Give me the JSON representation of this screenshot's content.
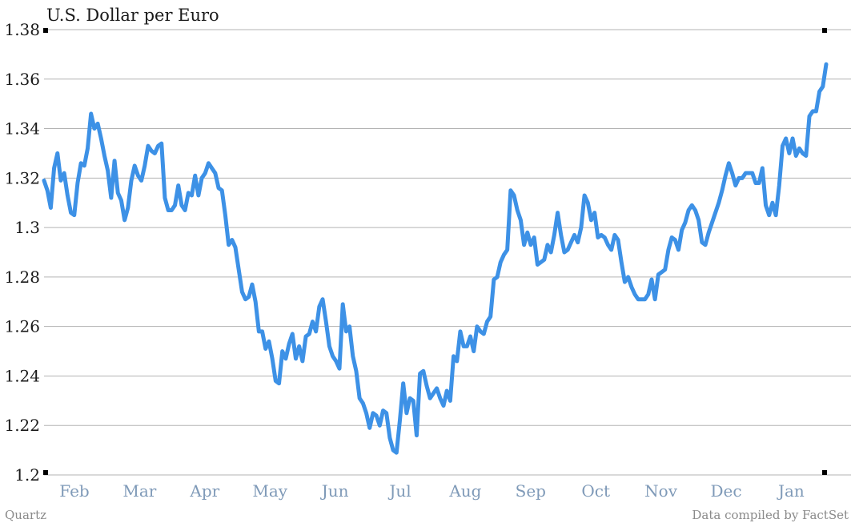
{
  "chart_data": {
    "type": "line",
    "title": "U.S. Dollar per Euro",
    "ylim": [
      1.2,
      1.38
    ],
    "yticks": [
      "1.2",
      "1.22",
      "1.24",
      "1.26",
      "1.28",
      "1.3",
      "1.32",
      "1.34",
      "1.36",
      "1.38"
    ],
    "xticks": [
      "Feb",
      "Mar",
      "Apr",
      "May",
      "Jun",
      "Jul",
      "Aug",
      "Sep",
      "Oct",
      "Nov",
      "Dec",
      "Jan"
    ],
    "grid": true,
    "series_color": "#3d91e6",
    "series": [
      {
        "values": [
          1.319,
          1.315,
          1.308,
          1.324,
          1.33,
          1.319,
          1.322,
          1.313,
          1.306,
          1.305,
          1.318,
          1.326,
          1.325,
          1.332,
          1.346,
          1.34,
          1.342,
          1.336,
          1.329,
          1.323,
          1.312,
          1.327,
          1.314,
          1.311,
          1.303,
          1.308,
          1.319,
          1.325,
          1.321,
          1.319,
          1.325,
          1.333,
          1.331,
          1.33,
          1.333,
          1.334,
          1.312,
          1.307,
          1.307,
          1.309,
          1.317,
          1.309,
          1.307,
          1.314,
          1.313,
          1.321,
          1.313,
          1.32,
          1.322,
          1.326,
          1.324,
          1.322,
          1.316,
          1.315,
          1.305,
          1.293,
          1.295,
          1.292,
          1.283,
          1.274,
          1.271,
          1.272,
          1.277,
          1.27,
          1.258,
          1.258,
          1.251,
          1.254,
          1.247,
          1.238,
          1.237,
          1.25,
          1.247,
          1.253,
          1.257,
          1.247,
          1.252,
          1.246,
          1.256,
          1.257,
          1.262,
          1.258,
          1.268,
          1.271,
          1.262,
          1.252,
          1.248,
          1.246,
          1.243,
          1.269,
          1.258,
          1.26,
          1.248,
          1.242,
          1.231,
          1.229,
          1.225,
          1.219,
          1.225,
          1.224,
          1.22,
          1.226,
          1.225,
          1.215,
          1.21,
          1.209,
          1.222,
          1.237,
          1.225,
          1.231,
          1.23,
          1.216,
          1.241,
          1.242,
          1.236,
          1.231,
          1.233,
          1.235,
          1.231,
          1.228,
          1.234,
          1.23,
          1.248,
          1.246,
          1.258,
          1.252,
          1.252,
          1.256,
          1.25,
          1.26,
          1.258,
          1.257,
          1.262,
          1.264,
          1.279,
          1.28,
          1.286,
          1.289,
          1.291,
          1.315,
          1.313,
          1.307,
          1.303,
          1.293,
          1.298,
          1.293,
          1.296,
          1.285,
          1.286,
          1.287,
          1.293,
          1.29,
          1.297,
          1.306,
          1.297,
          1.29,
          1.291,
          1.294,
          1.297,
          1.294,
          1.3,
          1.313,
          1.31,
          1.303,
          1.306,
          1.296,
          1.297,
          1.296,
          1.293,
          1.291,
          1.297,
          1.295,
          1.286,
          1.278,
          1.28,
          1.276,
          1.273,
          1.271,
          1.271,
          1.271,
          1.273,
          1.279,
          1.271,
          1.281,
          1.282,
          1.283,
          1.291,
          1.296,
          1.295,
          1.291,
          1.299,
          1.302,
          1.307,
          1.309,
          1.307,
          1.303,
          1.294,
          1.293,
          1.298,
          1.302,
          1.306,
          1.31,
          1.315,
          1.321,
          1.326,
          1.322,
          1.317,
          1.32,
          1.32,
          1.322,
          1.322,
          1.322,
          1.318,
          1.318,
          1.324,
          1.309,
          1.305,
          1.31,
          1.305,
          1.317,
          1.333,
          1.336,
          1.33,
          1.336,
          1.329,
          1.332,
          1.33,
          1.329,
          1.345,
          1.347,
          1.347,
          1.355,
          1.357,
          1.366
        ]
      }
    ]
  },
  "footer": {
    "source_left": "Quartz",
    "source_right": "Data compiled by FactSet"
  }
}
